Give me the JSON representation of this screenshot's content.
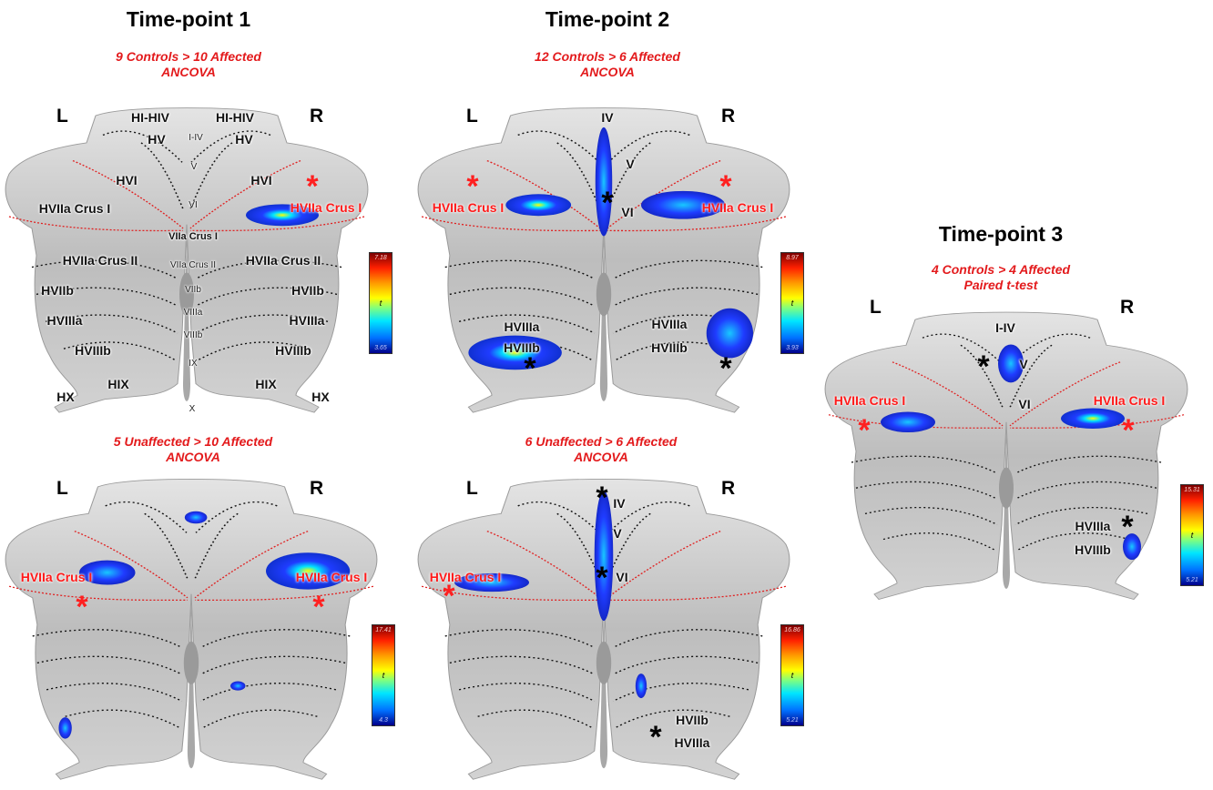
{
  "colors": {
    "label_red": "#e31a1c",
    "blob_blue": "#1f3cff",
    "cerebellum": "#c9c9c9"
  },
  "panels": {
    "tp1a": {
      "title": "Time-point 1",
      "line1": "9 Controls > 10 Affected",
      "line2": "ANCOVA",
      "left": "L",
      "right": "R",
      "labels": [
        "HI-HIV",
        "HI-HIV",
        "HV",
        "HV",
        "I-IV",
        "V",
        "HVI",
        "HVI",
        "VI",
        "HVIIa Crus I",
        "HVIIa Crus I",
        "VIIa Crus I",
        "HVIIa Crus II",
        "VIIa Crus II",
        "HVIIa Crus II",
        "HVIIb",
        "VIIb",
        "HVIIb",
        "HVIIIa",
        "VIIIa",
        "HVIIIa",
        "HVIIIb",
        "VIIIb",
        "HVIIIb",
        "IX",
        "HIX",
        "HIX",
        "HX",
        "X",
        "HX"
      ],
      "colorbar": {
        "max": "7.18",
        "min": "3.65",
        "stat": "t"
      }
    },
    "tp1b": {
      "line1": "5 Unaffected > 10 Affected",
      "line2": "ANCOVA",
      "left": "L",
      "right": "R",
      "labels": [
        "HVIIa Crus I",
        "HVIIa Crus I"
      ],
      "colorbar": {
        "max": "17.41",
        "min": "4.3",
        "stat": "t"
      }
    },
    "tp2a": {
      "title": "Time-point 2",
      "line1": "12 Controls > 6 Affected",
      "line2": "ANCOVA",
      "left": "L",
      "right": "R",
      "labels": [
        "IV",
        "V",
        "VI",
        "HVIIa Crus I",
        "HVIIa Crus I",
        "HVIIIa",
        "HVIIIb",
        "HVIIIa",
        "HVIIIb"
      ],
      "colorbar": {
        "max": "8.97",
        "min": "3.93",
        "stat": "t"
      }
    },
    "tp2b": {
      "line1": "6 Unaffected > 6 Affected",
      "line2": "ANCOVA",
      "left": "L",
      "right": "R",
      "labels": [
        "IV",
        "V",
        "VI",
        "HVIIa Crus I",
        "HVIIb",
        "HVIIIa"
      ],
      "colorbar": {
        "max": "16.86",
        "min": "5.21",
        "stat": "t"
      }
    },
    "tp3": {
      "title": "Time-point 3",
      "line1": "4 Controls > 4 Affected",
      "line2": "Paired t-test",
      "left": "L",
      "right": "R",
      "labels": [
        "I-IV",
        "V",
        "VI",
        "HVIIa Crus I",
        "HVIIa Crus I",
        "HVIIIa",
        "HVIIIb"
      ],
      "colorbar": {
        "max": "15.31",
        "min": "5.21",
        "stat": "t"
      }
    }
  }
}
